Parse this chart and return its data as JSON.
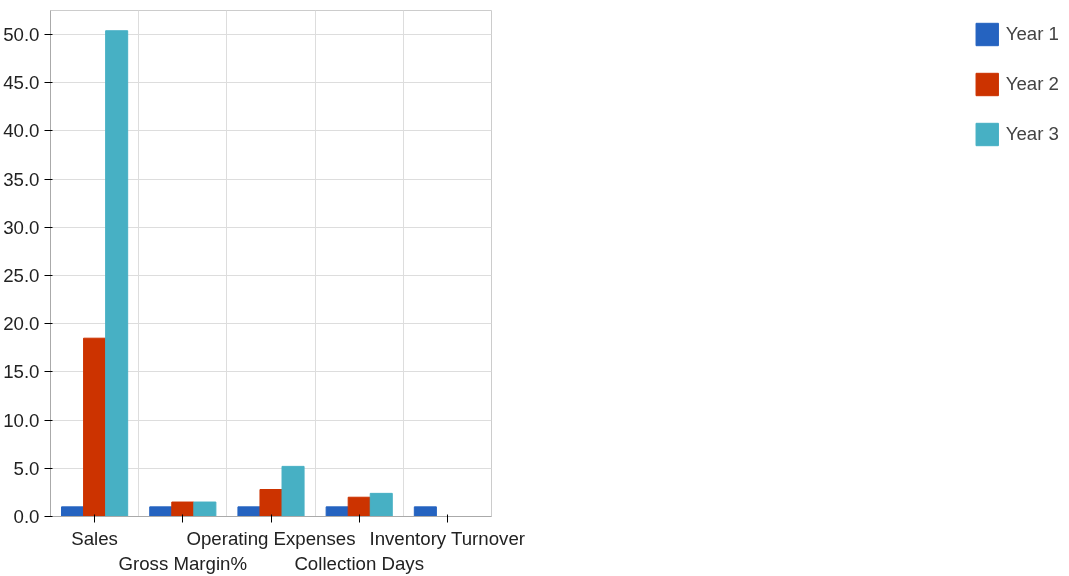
{
  "chart_data": {
    "type": "bar",
    "categories": [
      "Sales",
      "Gross Margin%",
      "Operating Expenses",
      "Collection Days",
      "Inventory Turnover"
    ],
    "series": [
      {
        "name": "Year 1",
        "color": "#2563c0",
        "values": [
          1.0,
          1.0,
          1.0,
          1.0,
          1.0
        ]
      },
      {
        "name": "Year 2",
        "color": "#cc3300",
        "values": [
          18.5,
          1.5,
          2.8,
          2.0,
          0
        ]
      },
      {
        "name": "Year 3",
        "color": "#47b0c4",
        "values": [
          50.4,
          1.5,
          5.2,
          2.4,
          0
        ]
      }
    ],
    "ylim": [
      0,
      52.5
    ],
    "yticks": [
      {
        "value": 0,
        "label": "0.0"
      },
      {
        "value": 5,
        "label": "5.0"
      },
      {
        "value": 10,
        "label": "10.0"
      },
      {
        "value": 15,
        "label": "15.0"
      },
      {
        "value": 20,
        "label": "20.0"
      },
      {
        "value": 25,
        "label": "25.0"
      },
      {
        "value": 30,
        "label": "30.0"
      },
      {
        "value": 35,
        "label": "35.0"
      },
      {
        "value": 40,
        "label": "40.0"
      },
      {
        "value": 45,
        "label": "45.0"
      },
      {
        "value": 50,
        "label": "50.0"
      }
    ],
    "grid": true,
    "legend": "right"
  }
}
